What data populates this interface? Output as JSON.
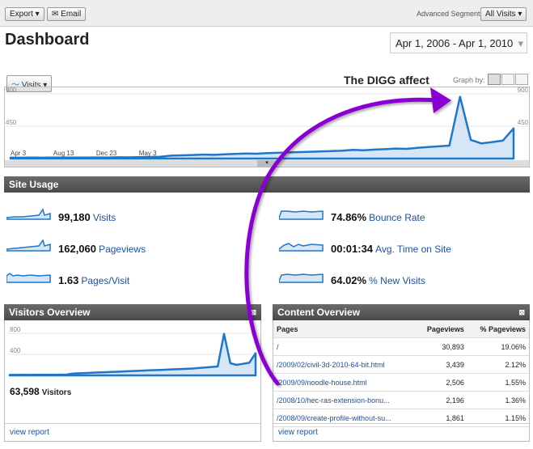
{
  "toolbar": {
    "export": "Export",
    "email": "Email",
    "segments_label": "Advanced Segments:",
    "segments_value": "All Visits"
  },
  "header": {
    "title": "Dashboard",
    "date_range": "Apr 1, 2006 - Apr 1, 2010"
  },
  "chart_data": [
    {
      "type": "area",
      "tab": "Visits",
      "annotation": "The DIGG affect",
      "graph_by": "Graph by:",
      "color": "#1f77c9",
      "categories": [
        "Apr 3",
        null,
        null,
        null,
        "Aug 13",
        null,
        null,
        null,
        "Dec 23",
        null,
        null,
        null,
        "May 3",
        null,
        null,
        null,
        null,
        null,
        null,
        null,
        null,
        null,
        null,
        null,
        null,
        null,
        null,
        null,
        null,
        null,
        null,
        null,
        null,
        null,
        null,
        null,
        null,
        null,
        null,
        null,
        null,
        null,
        null,
        null,
        null,
        null,
        null,
        null
      ],
      "series": [
        {
          "name": "Visits",
          "values": [
            12,
            12,
            13,
            12,
            14,
            13,
            15,
            14,
            16,
            15,
            18,
            17,
            20,
            22,
            25,
            40,
            45,
            50,
            55,
            52,
            60,
            65,
            70,
            68,
            75,
            80,
            85,
            90,
            95,
            100,
            105,
            110,
            120,
            115,
            125,
            130,
            140,
            135,
            150,
            160,
            170,
            180,
            860,
            260,
            210,
            230,
            250,
            420
          ]
        }
      ],
      "ylim": [
        0,
        900
      ],
      "yticks": [
        450,
        900
      ],
      "grid": true
    },
    {
      "type": "area",
      "title": "Visitors Overview",
      "color": "#1f77c9",
      "categories": [
        null,
        null,
        null,
        null,
        null,
        null,
        null,
        null,
        null,
        null,
        null,
        null,
        null,
        null,
        null,
        null,
        null,
        null,
        null,
        null,
        null,
        null,
        null,
        null,
        null,
        null,
        null,
        null,
        null,
        null,
        null,
        null,
        null,
        null,
        null,
        null,
        null,
        null,
        null,
        null
      ],
      "series": [
        {
          "name": "Visitors",
          "values": [
            10,
            10,
            11,
            10,
            12,
            11,
            12,
            13,
            14,
            15,
            35,
            40,
            45,
            50,
            55,
            60,
            65,
            70,
            75,
            80,
            85,
            90,
            95,
            100,
            105,
            110,
            115,
            120,
            125,
            130,
            140,
            150,
            160,
            170,
            790,
            230,
            200,
            220,
            240,
            420
          ]
        }
      ],
      "total": "63,598",
      "ylim": [
        0,
        800
      ],
      "yticks": [
        400,
        800
      ],
      "grid": true,
      "link": "view report"
    }
  ],
  "site_usage": {
    "title": "Site Usage",
    "metrics": [
      {
        "value": "99,180",
        "label": "Visits"
      },
      {
        "value": "162,060",
        "label": "Pageviews"
      },
      {
        "value": "1.63",
        "label": "Pages/Visit"
      },
      {
        "value": "74.86%",
        "label": "Bounce Rate"
      },
      {
        "value": "00:01:34",
        "label": "Avg. Time on Site"
      },
      {
        "value": "64.02%",
        "label": "% New Visits"
      }
    ]
  },
  "content_overview": {
    "title": "Content Overview",
    "columns": [
      "Pages",
      "Pageviews",
      "% Pageviews"
    ],
    "rows": [
      [
        "/",
        "30,893",
        "19.06%"
      ],
      [
        "/2009/02/civil-3d-2010-64-bit.html",
        "3,439",
        "2.12%"
      ],
      [
        "/2009/09/noodle-house.html",
        "2,506",
        "1.55%"
      ],
      [
        "/2008/10/hec-ras-extension-bonu...",
        "2,196",
        "1.36%"
      ],
      [
        "/2008/09/create-profile-without-su...",
        "1,861",
        "1.15%"
      ]
    ],
    "link": "view report"
  }
}
